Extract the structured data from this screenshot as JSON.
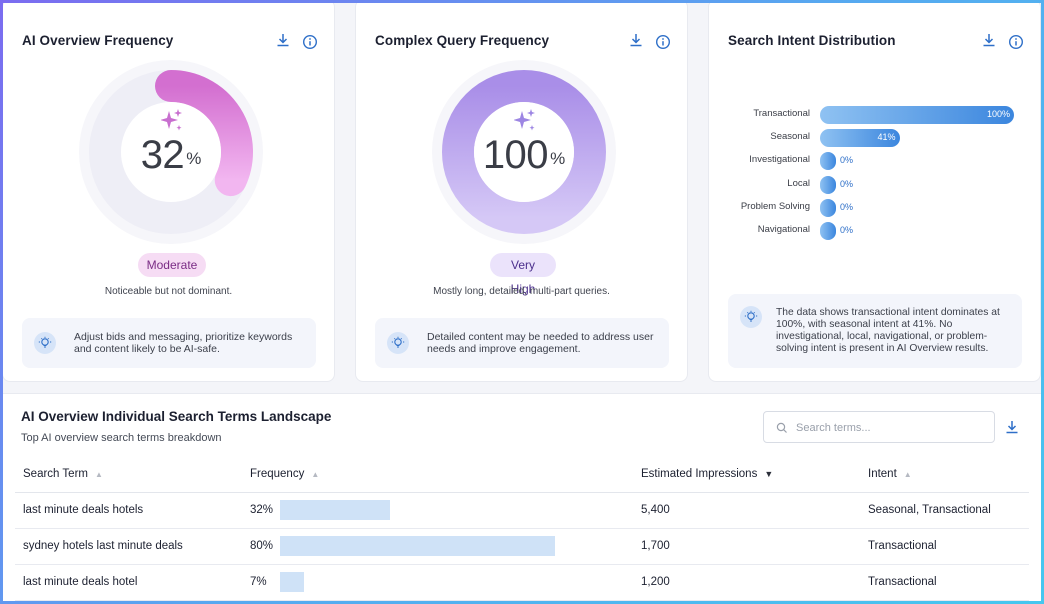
{
  "cards": {
    "ai_overview": {
      "title": "AI Overview Frequency",
      "value": "32",
      "unit": "%",
      "fraction": 0.32,
      "badge": "Moderate",
      "badge_sub": "Noticeable but not dominant.",
      "tip": "Adjust bids and messaging, prioritize keywords and content likely to be AI-safe."
    },
    "complex_query": {
      "title": "Complex Query Frequency",
      "value": "100",
      "unit": "%",
      "fraction": 1.0,
      "badge": "Very High",
      "badge_sub": "Mostly long, detailed, multi-part queries.",
      "tip": "Detailed content may be needed to address user needs and improve engagement."
    },
    "intent": {
      "title": "Search Intent Distribution",
      "bars": [
        {
          "label": "Transactional",
          "value": 100,
          "text": "100%"
        },
        {
          "label": "Seasonal",
          "value": 41,
          "text": "41%"
        },
        {
          "label": "Investigational",
          "value": 0,
          "text": "0%"
        },
        {
          "label": "Local",
          "value": 0,
          "text": "0%"
        },
        {
          "label": "Problem Solving",
          "value": 0,
          "text": "0%"
        },
        {
          "label": "Navigational",
          "value": 0,
          "text": "0%"
        }
      ],
      "tip": "The data shows transactional intent dominates at 100%, with seasonal intent at 41%. No investigational, local, navigational, or problem-solving intent is present in AI Overview results."
    }
  },
  "landscape": {
    "title": "AI Overview Individual Search Terms Landscape",
    "subtitle": "Top AI overview search terms breakdown",
    "search_placeholder": "Search terms...",
    "columns": [
      "Search Term",
      "Frequency",
      "Estimated Impressions",
      "Intent"
    ],
    "rows": [
      {
        "term": "last minute deals hotels",
        "freq_text": "32%",
        "freq": 32,
        "impressions": "5,400",
        "intent": "Seasonal, Transactional"
      },
      {
        "term": "sydney hotels last minute deals",
        "freq_text": "80%",
        "freq": 80,
        "impressions": "1,700",
        "intent": "Transactional"
      },
      {
        "term": "last minute deals hotel",
        "freq_text": "7%",
        "freq": 7,
        "impressions": "1,200",
        "intent": "Transactional"
      }
    ]
  },
  "colors": {
    "accent": "#2e6fc8",
    "gauge_pink": "#e07fd8",
    "gauge_purple": "#b49cec"
  }
}
